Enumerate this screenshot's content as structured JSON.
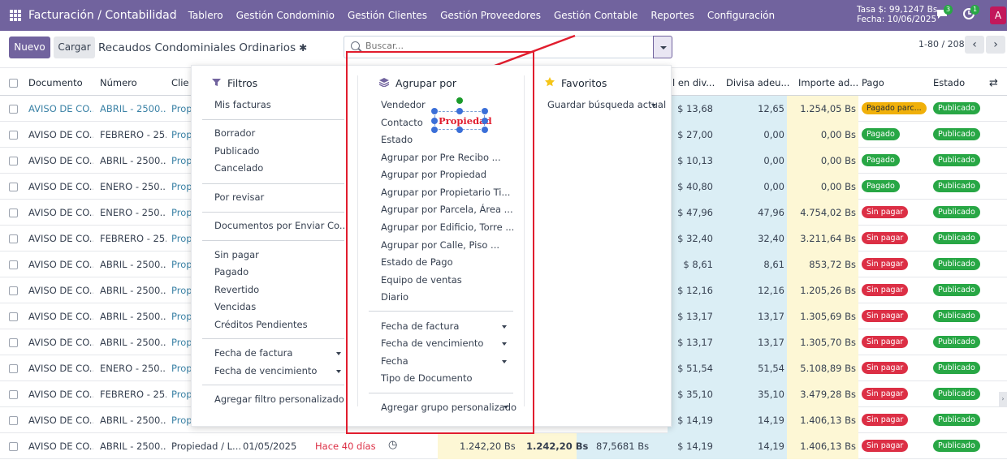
{
  "topbar": {
    "title": "Facturación / Contabilidad",
    "menu": [
      "Tablero",
      "Gestión Condominio",
      "Gestión Clientes",
      "Gestión Proveedores",
      "Gestión Contable",
      "Reportes",
      "Configuración"
    ],
    "tasa": "Tasa $: 99,1247 Bs",
    "fecha": "Fecha: 10/06/2025",
    "chat_count": "3",
    "activity_count": "1",
    "avatar": "A"
  },
  "control": {
    "new_label": "Nuevo",
    "load_label": "Cargar",
    "title": "Recaudos Condominiales Ordinarios",
    "search_placeholder": "Buscar...",
    "pager": "1-80 / 208",
    "prev": "‹",
    "next": "›"
  },
  "columns": [
    "Documento",
    "Número",
    "Clie",
    "l en div...",
    "Divisa adeu...",
    "Importe ad...",
    "Pago",
    "Estado"
  ],
  "rows": [
    {
      "doc": "AVISO DE CO...",
      "num": "ABRIL - 2500...",
      "cli": "Prop",
      "usd": "$ 13,68",
      "div": "12,65",
      "imp": "1.254,05 Bs",
      "pago": "Pagado parc...",
      "pago_color": "#f0b00a",
      "estado": "Publicado"
    },
    {
      "doc": "AVISO DE CO...",
      "num": "FEBRERO - 25...",
      "cli": "Prop",
      "usd": "$ 27,00",
      "div": "0,00",
      "imp": "0,00 Bs",
      "pago": "Pagado",
      "pago_color": "#28a745",
      "estado": "Publicado"
    },
    {
      "doc": "AVISO DE CO...",
      "num": "ABRIL - 2500...",
      "cli": "Prop",
      "usd": "$ 10,13",
      "div": "0,00",
      "imp": "0,00 Bs",
      "pago": "Pagado",
      "pago_color": "#28a745",
      "estado": "Publicado"
    },
    {
      "doc": "AVISO DE CO...",
      "num": "ENERO - 250...",
      "cli": "Prop",
      "usd": "$ 40,80",
      "div": "0,00",
      "imp": "0,00 Bs",
      "pago": "Pagado",
      "pago_color": "#28a745",
      "estado": "Publicado"
    },
    {
      "doc": "AVISO DE CO...",
      "num": "ENERO - 250...",
      "cli": "Prop",
      "usd": "$ 47,96",
      "div": "47,96",
      "imp": "4.754,02 Bs",
      "pago": "Sin pagar",
      "pago_color": "#dc2f45",
      "estado": "Publicado"
    },
    {
      "doc": "AVISO DE CO...",
      "num": "FEBRERO - 25...",
      "cli": "Prop",
      "usd": "$ 32,40",
      "div": "32,40",
      "imp": "3.211,64 Bs",
      "pago": "Sin pagar",
      "pago_color": "#dc2f45",
      "estado": "Publicado"
    },
    {
      "doc": "AVISO DE CO...",
      "num": "ABRIL - 2500...",
      "cli": "Prop",
      "usd": "$ 8,61",
      "div": "8,61",
      "imp": "853,72 Bs",
      "pago": "Sin pagar",
      "pago_color": "#dc2f45",
      "estado": "Publicado"
    },
    {
      "doc": "AVISO DE CO...",
      "num": "ABRIL - 2500...",
      "cli": "Prop",
      "usd": "$ 12,16",
      "div": "12,16",
      "imp": "1.205,26 Bs",
      "pago": "Sin pagar",
      "pago_color": "#dc2f45",
      "estado": "Publicado"
    },
    {
      "doc": "AVISO DE CO...",
      "num": "ABRIL - 2500...",
      "cli": "Prop",
      "usd": "$ 13,17",
      "div": "13,17",
      "imp": "1.305,69 Bs",
      "pago": "Sin pagar",
      "pago_color": "#dc2f45",
      "estado": "Publicado"
    },
    {
      "doc": "AVISO DE CO...",
      "num": "ABRIL - 2500...",
      "cli": "Prop",
      "usd": "$ 13,17",
      "div": "13,17",
      "imp": "1.305,70 Bs",
      "pago": "Sin pagar",
      "pago_color": "#dc2f45",
      "estado": "Publicado"
    },
    {
      "doc": "AVISO DE CO...",
      "num": "ENERO - 250...",
      "cli": "Prop",
      "usd": "$ 51,54",
      "div": "51,54",
      "imp": "5.108,89 Bs",
      "pago": "Sin pagar",
      "pago_color": "#dc2f45",
      "estado": "Publicado"
    },
    {
      "doc": "AVISO DE CO...",
      "num": "FEBRERO - 25...",
      "cli": "Prop",
      "usd": "$ 35,10",
      "div": "35,10",
      "imp": "3.479,28 Bs",
      "pago": "Sin pagar",
      "pago_color": "#dc2f45",
      "estado": "Publicado"
    },
    {
      "doc": "AVISO DE CO...",
      "num": "ABRIL - 2500...",
      "cli": "Prop",
      "usd": "$ 14,19",
      "div": "14,19",
      "imp": "1.406,13 Bs",
      "pago": "Sin pagar",
      "pago_color": "#dc2f45",
      "estado": "Publicado"
    },
    {
      "doc": "AVISO DE CO...",
      "num": "ABRIL - 2500...",
      "cli": "Propiedad / L...",
      "date": "01/05/2025",
      "due": "Hace 40 días",
      "amt1": "1.242,20 Bs",
      "amt2": "1.242,20 Bs",
      "rate": "87,5681 Bs",
      "usd": "$ 14,19",
      "div": "14,19",
      "imp": "1.406,13 Bs",
      "pago": "Sin pagar",
      "pago_color": "#dc2f45",
      "estado": "Publicado"
    }
  ],
  "estado_color": "#28a745",
  "filters": {
    "title": "Filtros",
    "groups": [
      [
        "Mis facturas"
      ],
      [
        "Borrador",
        "Publicado",
        "Cancelado"
      ],
      [
        "Por revisar"
      ],
      [
        "Documentos por Enviar Co..."
      ],
      [
        "Sin pagar",
        "Pagado",
        "Revertido",
        "Vencidas",
        "Créditos Pendientes"
      ],
      [
        "Fecha de factura",
        "Fecha de vencimiento"
      ],
      [
        "Agregar filtro personalizado"
      ]
    ]
  },
  "groupby": {
    "title": "Agrupar por",
    "items": [
      "Vendedor",
      "Contacto",
      "Estado",
      "Agrupar por Pre Recibo ...",
      "Agrupar por Propiedad",
      "Agrupar por Propietario Ti...",
      "Agrupar por Parcela, Área ...",
      "Agrupar por Edificio, Torre ...",
      "Agrupar por Calle, Piso ...",
      "Estado de Pago",
      "Equipo de ventas",
      "Diario"
    ],
    "dates": [
      "Fecha de factura",
      "Fecha de vencimiento",
      "Fecha",
      "Tipo de Documento"
    ],
    "custom": "Agregar grupo personalizado"
  },
  "favorites": {
    "title": "Favoritos",
    "save": "Guardar búsqueda actual"
  },
  "annotation": {
    "text": "Propiedad"
  }
}
